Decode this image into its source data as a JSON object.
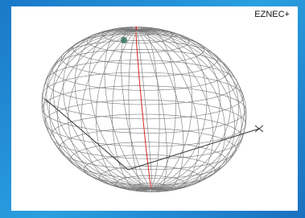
{
  "header": {
    "label": "EZNEC+"
  }
}
